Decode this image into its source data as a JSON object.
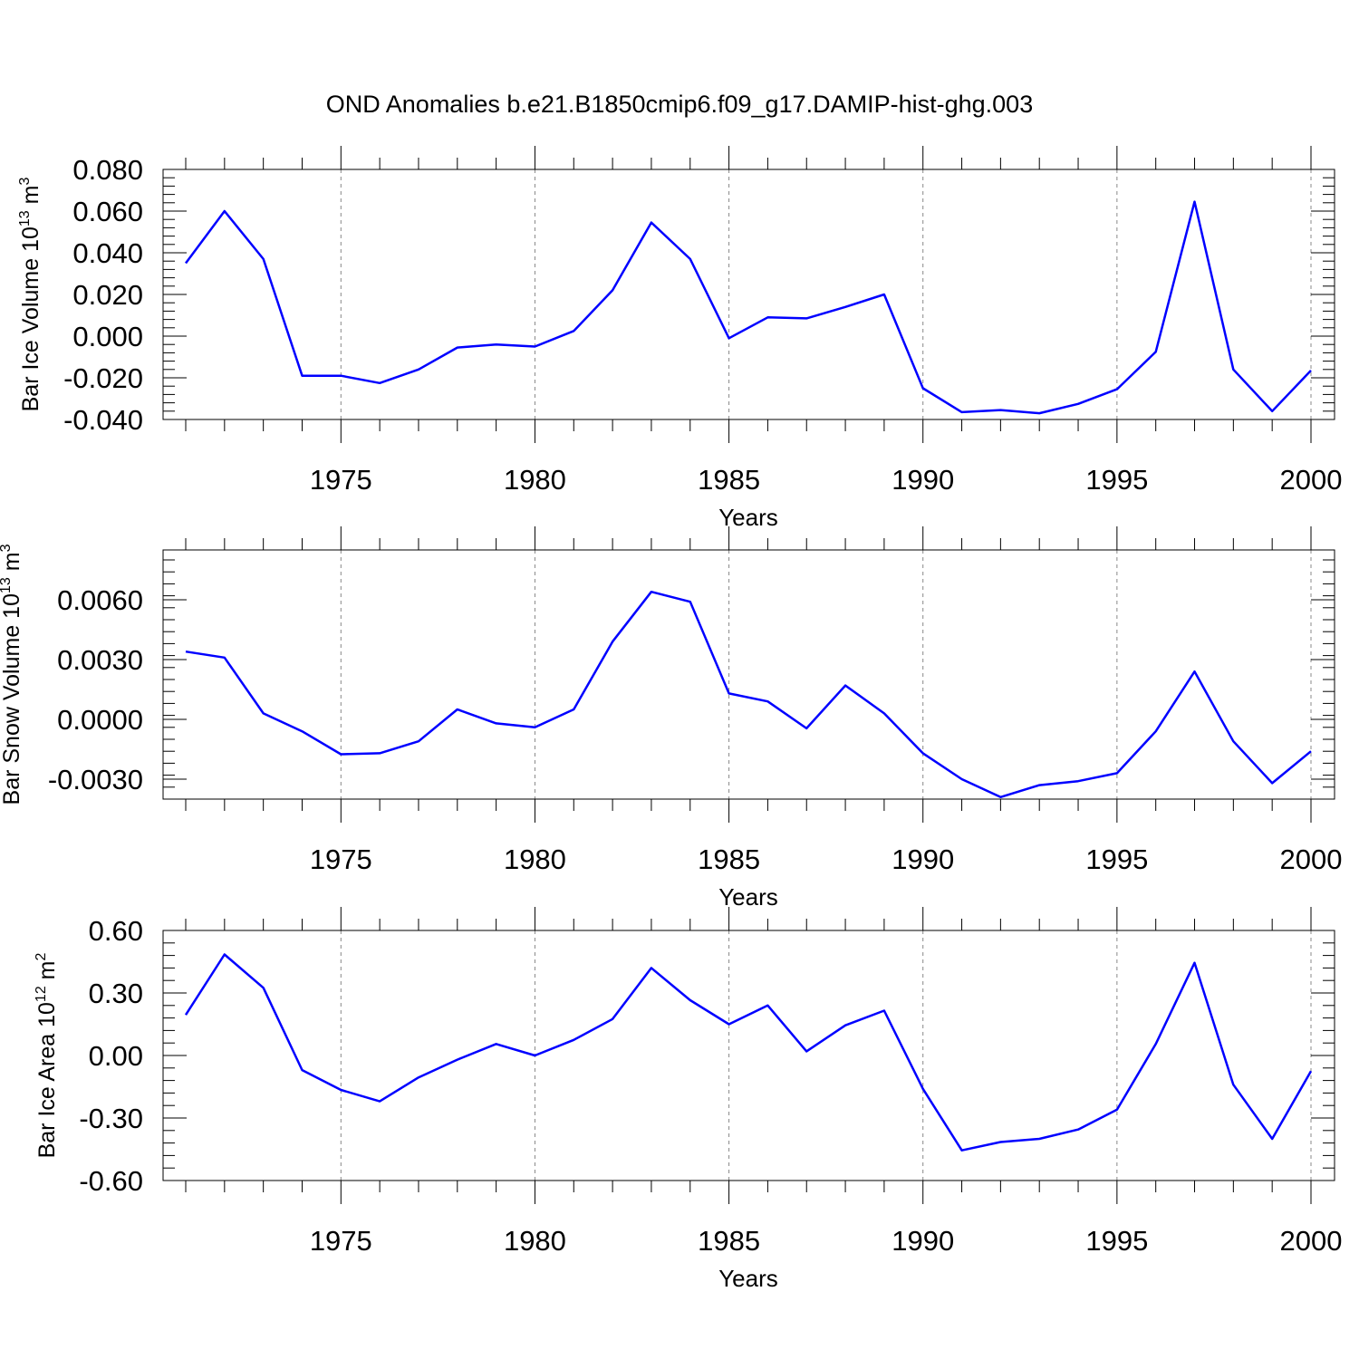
{
  "figure": {
    "title": "OND Anomalies b.e21.B1850cmip6.f09_g17.DAMIP-hist-ghg.003"
  },
  "chart_data": [
    {
      "type": "line",
      "title": "OND Anomalies b.e21.B1850cmip6.f09_g17.DAMIP-hist-ghg.003",
      "xlabel": "Years",
      "ylabel": {
        "text": "Bar Ice Volume 10",
        "exp": "13",
        "unit": " m",
        "unit_exp": "3"
      },
      "xlim": [
        1971,
        2000
      ],
      "ylim": [
        -0.04,
        0.08
      ],
      "xticks": [
        1975,
        1980,
        1985,
        1990,
        1995,
        2000
      ],
      "xtick_labels": [
        "1975",
        "1980",
        "1985",
        "1990",
        "1995",
        "2000"
      ],
      "yticks": [
        -0.04,
        -0.02,
        0.0,
        0.02,
        0.04,
        0.06,
        0.08
      ],
      "ytick_labels": [
        "-0.040",
        "-0.020",
        "0.000",
        "0.020",
        "0.040",
        "0.060",
        "0.080"
      ],
      "grid": "vertical dashed at major x ticks",
      "color": "#0000ff",
      "x": [
        1971,
        1972,
        1973,
        1974,
        1975,
        1976,
        1977,
        1978,
        1979,
        1980,
        1981,
        1982,
        1983,
        1984,
        1985,
        1986,
        1987,
        1988,
        1989,
        1990,
        1991,
        1992,
        1993,
        1994,
        1995,
        1996,
        1997,
        1998,
        1999,
        2000
      ],
      "values": [
        0.035,
        0.06,
        0.037,
        -0.019,
        -0.019,
        -0.0225,
        -0.016,
        -0.0055,
        -0.004,
        -0.005,
        0.0025,
        0.022,
        0.0545,
        0.037,
        -0.001,
        0.009,
        0.0085,
        0.014,
        0.02,
        -0.025,
        -0.0365,
        -0.0355,
        -0.037,
        -0.0325,
        -0.0255,
        -0.0075,
        0.0645,
        -0.016,
        -0.036,
        -0.0165
      ]
    },
    {
      "type": "line",
      "xlabel": "Years",
      "ylabel": {
        "text": "Bar Snow Volume 10",
        "exp": "13",
        "unit": " m",
        "unit_exp": "3"
      },
      "xlim": [
        1971,
        2000
      ],
      "ylim": [
        -0.004,
        0.0085
      ],
      "xticks": [
        1975,
        1980,
        1985,
        1990,
        1995,
        2000
      ],
      "xtick_labels": [
        "1975",
        "1980",
        "1985",
        "1990",
        "1995",
        "2000"
      ],
      "yticks": [
        -0.003,
        0.0,
        0.003,
        0.006
      ],
      "ytick_labels": [
        "-0.0030",
        "0.0000",
        "0.0030",
        "0.0060"
      ],
      "grid": "vertical dashed at major x ticks",
      "color": "#0000ff",
      "x": [
        1971,
        1972,
        1973,
        1974,
        1975,
        1976,
        1977,
        1978,
        1979,
        1980,
        1981,
        1982,
        1983,
        1984,
        1985,
        1986,
        1987,
        1988,
        1989,
        1990,
        1991,
        1992,
        1993,
        1994,
        1995,
        1996,
        1997,
        1998,
        1999,
        2000
      ],
      "values": [
        0.0034,
        0.0031,
        0.0003,
        -0.0006,
        -0.00175,
        -0.0017,
        -0.0011,
        0.0005,
        -0.0002,
        -0.0004,
        0.0005,
        0.0039,
        0.0064,
        0.0059,
        0.0013,
        0.0009,
        -0.00045,
        0.0017,
        0.0003,
        -0.0017,
        -0.003,
        -0.0039,
        -0.0033,
        -0.0031,
        -0.0027,
        -0.0006,
        0.0024,
        -0.0011,
        -0.0032,
        -0.0016
      ]
    },
    {
      "type": "line",
      "xlabel": "Years",
      "ylabel": {
        "text": "Bar Ice Area 10",
        "exp": "12",
        "unit": " m",
        "unit_exp": "2"
      },
      "xlim": [
        1971,
        2000
      ],
      "ylim": [
        -0.6,
        0.6
      ],
      "xticks": [
        1975,
        1980,
        1985,
        1990,
        1995,
        2000
      ],
      "xtick_labels": [
        "1975",
        "1980",
        "1985",
        "1990",
        "1995",
        "2000"
      ],
      "yticks": [
        -0.6,
        -0.3,
        0.0,
        0.3,
        0.6
      ],
      "ytick_labels": [
        "-0.60",
        "-0.30",
        "0.00",
        "0.30",
        "0.60"
      ],
      "grid": "vertical dashed at major x ticks",
      "color": "#0000ff",
      "x": [
        1971,
        1972,
        1973,
        1974,
        1975,
        1976,
        1977,
        1978,
        1979,
        1980,
        1981,
        1982,
        1983,
        1984,
        1985,
        1986,
        1987,
        1988,
        1989,
        1990,
        1991,
        1992,
        1993,
        1994,
        1995,
        1996,
        1997,
        1998,
        1999,
        2000
      ],
      "values": [
        0.195,
        0.485,
        0.325,
        -0.07,
        -0.165,
        -0.22,
        -0.105,
        -0.02,
        0.055,
        0.0,
        0.075,
        0.175,
        0.42,
        0.265,
        0.15,
        0.24,
        0.02,
        0.145,
        0.215,
        -0.16,
        -0.455,
        -0.415,
        -0.4,
        -0.355,
        -0.26,
        0.055,
        0.445,
        -0.14,
        -0.4,
        -0.075
      ]
    }
  ]
}
